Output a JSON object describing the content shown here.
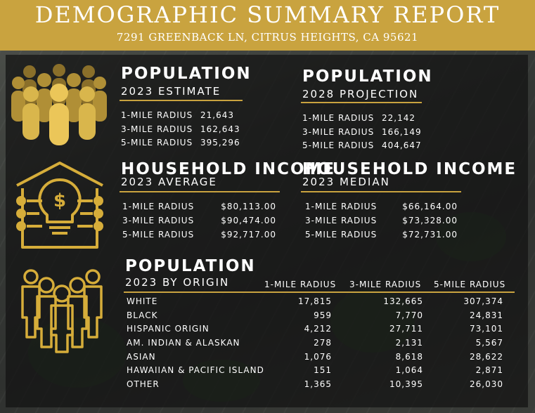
{
  "header": {
    "title": "DEMOGRAPHIC SUMMARY REPORT",
    "address": "7291 GREENBACK LN, CITRUS HEIGHTS, CA 95621"
  },
  "colors": {
    "gold": "#c9a33f",
    "panel": "#121212"
  },
  "population_2023": {
    "title": "POPULATION",
    "subtitle": "2023 ESTIMATE",
    "rows": [
      {
        "label": "1-MILE RADIUS",
        "value": "21,643"
      },
      {
        "label": "3-MILE RADIUS",
        "value": "162,643"
      },
      {
        "label": "5-MILE RADIUS",
        "value": "395,296"
      }
    ]
  },
  "population_2028": {
    "title": "POPULATION",
    "subtitle": "2028 PROJECTION",
    "rows": [
      {
        "label": "1-MILE RADIUS",
        "value": "22,142"
      },
      {
        "label": "3-MILE RADIUS",
        "value": "166,149"
      },
      {
        "label": "5-MILE RADIUS",
        "value": "404,647"
      }
    ]
  },
  "income_average": {
    "title": "HOUSEHOLD INCOME",
    "subtitle": "2023 AVERAGE",
    "rows": [
      {
        "label": "1-MILE RADIUS",
        "value": "$80,113.00"
      },
      {
        "label": "3-MILE RADIUS",
        "value": "$90,474.00"
      },
      {
        "label": "5-MILE RADIUS",
        "value": "$92,717.00"
      }
    ]
  },
  "income_median": {
    "title": "HOUSEHOLD INCOME",
    "subtitle": "2023 MEDIAN",
    "rows": [
      {
        "label": "1-MILE RADIUS",
        "value": "$66,164.00"
      },
      {
        "label": "3-MILE RADIUS",
        "value": "$73,328.00"
      },
      {
        "label": "5-MILE RADIUS",
        "value": "$72,731.00"
      }
    ]
  },
  "origin": {
    "title": "POPULATION",
    "subtitle": "2023 BY ORIGIN",
    "columns": [
      "1-MILE RADIUS",
      "3-MILE RADIUS",
      "5-MILE RADIUS"
    ],
    "rows": [
      {
        "label": "WHITE",
        "values": [
          "17,815",
          "132,665",
          "307,374"
        ]
      },
      {
        "label": "BLACK",
        "values": [
          "959",
          "7,770",
          "24,831"
        ]
      },
      {
        "label": "HISPANIC ORIGIN",
        "values": [
          "4,212",
          "27,711",
          "73,101"
        ]
      },
      {
        "label": "AM. INDIAN & ALASKAN",
        "values": [
          "278",
          "2,131",
          "5,567"
        ]
      },
      {
        "label": "ASIAN",
        "values": [
          "1,076",
          "8,618",
          "28,622"
        ]
      },
      {
        "label": "HAWAIIAN & PACIFIC ISLAND",
        "values": [
          "151",
          "1,064",
          "2,871"
        ]
      },
      {
        "label": "OTHER",
        "values": [
          "1,365",
          "10,395",
          "26,030"
        ]
      }
    ]
  },
  "icons": {
    "crowd": "crowd-icon",
    "income": "house-dollar-lightbulb-icon",
    "origin": "people-outline-icon"
  }
}
